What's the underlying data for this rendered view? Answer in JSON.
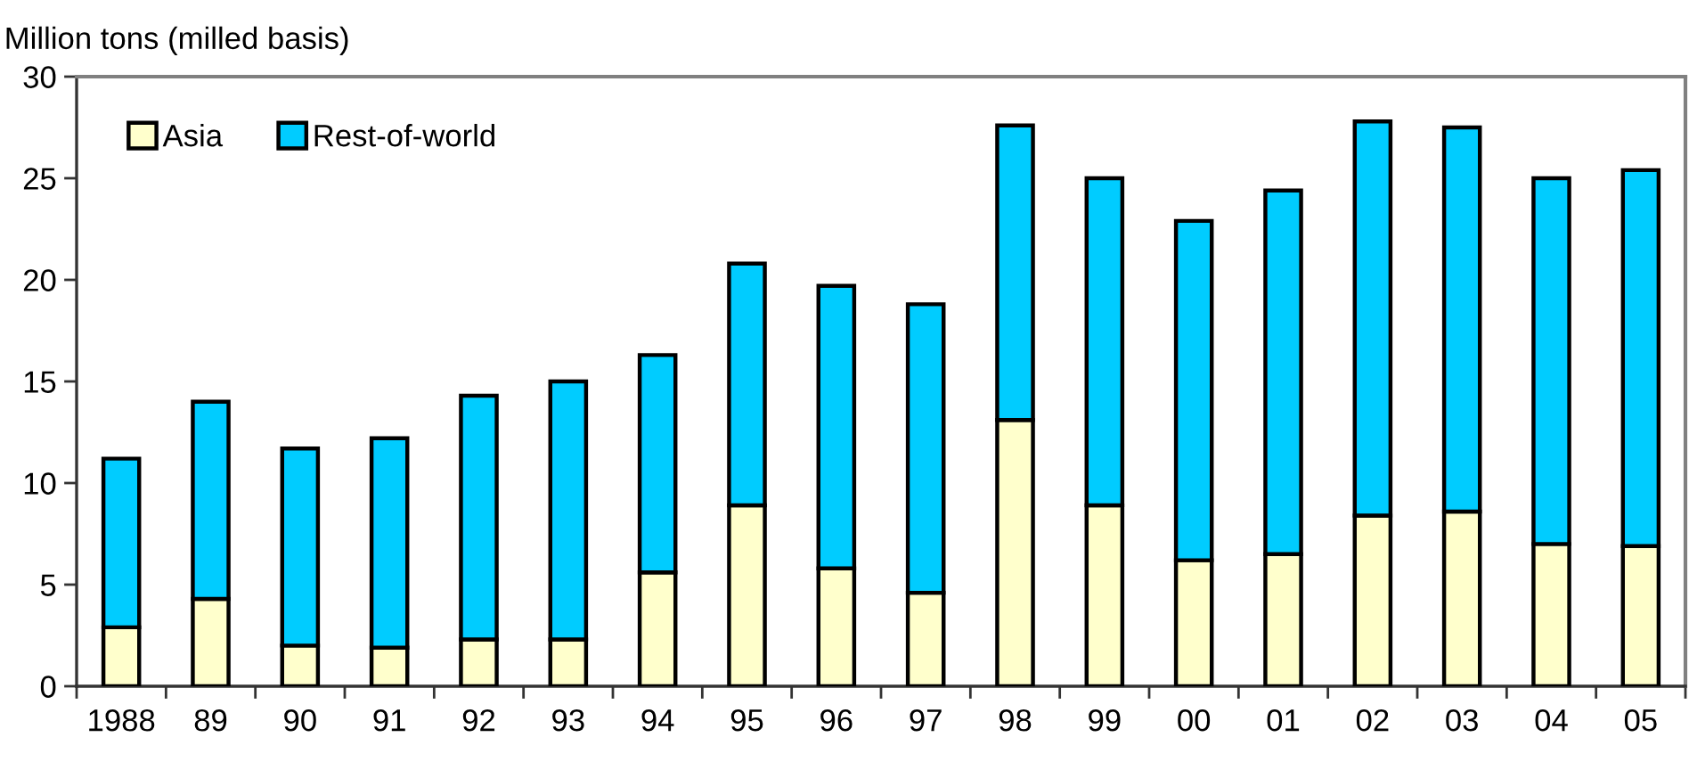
{
  "chart_data": {
    "type": "bar",
    "ylabel": "Million tons (milled basis)",
    "stacked": true,
    "legend": "top left",
    "grid": false,
    "categories": [
      "1988",
      "89",
      "90",
      "91",
      "92",
      "93",
      "94",
      "95",
      "96",
      "97",
      "98",
      "99",
      "00",
      "01",
      "02",
      "03",
      "04",
      "05"
    ],
    "series": [
      {
        "name": "Asia",
        "color": "#ffffcc",
        "values": [
          2.9,
          4.3,
          2.0,
          1.9,
          2.3,
          2.3,
          5.6,
          8.9,
          5.8,
          4.6,
          13.1,
          8.9,
          6.2,
          6.5,
          8.4,
          8.6,
          7.0,
          6.9
        ]
      },
      {
        "name": "Rest-of-world",
        "color": "#00ccff",
        "values": [
          8.3,
          9.7,
          9.7,
          10.3,
          12.0,
          12.7,
          10.7,
          11.9,
          13.9,
          14.2,
          14.5,
          16.1,
          16.7,
          17.9,
          19.4,
          18.9,
          18.0,
          18.5
        ]
      }
    ],
    "ylim": [
      0,
      30
    ],
    "yticks": [
      0,
      5,
      10,
      15,
      20,
      25,
      30
    ]
  }
}
